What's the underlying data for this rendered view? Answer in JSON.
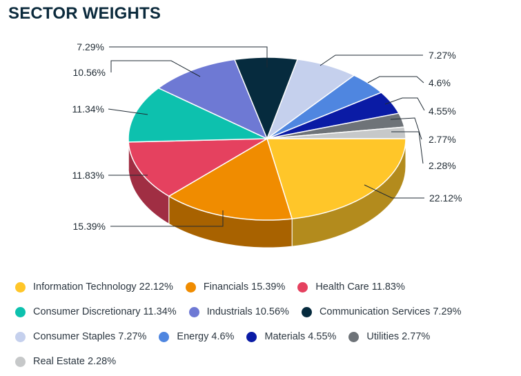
{
  "title": "SECTOR WEIGHTS",
  "chart_data": {
    "type": "pie",
    "title": "SECTOR WEIGHTS",
    "style": "3d",
    "legend_position": "bottom",
    "slices": [
      {
        "label": "Information Technology",
        "value": 22.12,
        "display": "22.12%",
        "legend_text": "Information Technology 22.12%",
        "color": "#FFC629"
      },
      {
        "label": "Financials",
        "value": 15.39,
        "display": "15.39%",
        "legend_text": "Financials 15.39%",
        "color": "#F08C00"
      },
      {
        "label": "Health Care",
        "value": 11.83,
        "display": "11.83%",
        "legend_text": "Health Care 11.83%",
        "color": "#E5415F"
      },
      {
        "label": "Consumer Discretionary",
        "value": 11.34,
        "display": "11.34%",
        "legend_text": "Consumer Discretionary 11.34%",
        "color": "#0DC1AE"
      },
      {
        "label": "Industrials",
        "value": 10.56,
        "display": "10.56%",
        "legend_text": "Industrials 10.56%",
        "color": "#6E79D4"
      },
      {
        "label": "Communication Services",
        "value": 7.29,
        "display": "7.29%",
        "legend_text": "Communication Services 7.29%",
        "color": "#062B3E"
      },
      {
        "label": "Consumer Staples",
        "value": 7.27,
        "display": "7.27%",
        "legend_text": "Consumer Staples 7.27%",
        "color": "#C5D0ED"
      },
      {
        "label": "Energy",
        "value": 4.6,
        "display": "4.6%",
        "legend_text": "Energy 4.6%",
        "color": "#4F86E0"
      },
      {
        "label": "Materials",
        "value": 4.55,
        "display": "4.55%",
        "legend_text": "Materials 4.55%",
        "color": "#0A1BA5"
      },
      {
        "label": "Utilities",
        "value": 2.77,
        "display": "2.77%",
        "legend_text": "Utilities 2.77%",
        "color": "#6E7378"
      },
      {
        "label": "Real Estate",
        "value": 2.28,
        "display": "2.28%",
        "legend_text": "Real Estate 2.28%",
        "color": "#C6C8C9"
      }
    ]
  },
  "legend_rows": [
    [
      0,
      1,
      2
    ],
    [
      3,
      4,
      5
    ],
    [
      6,
      7,
      8,
      9
    ],
    [
      10
    ]
  ]
}
